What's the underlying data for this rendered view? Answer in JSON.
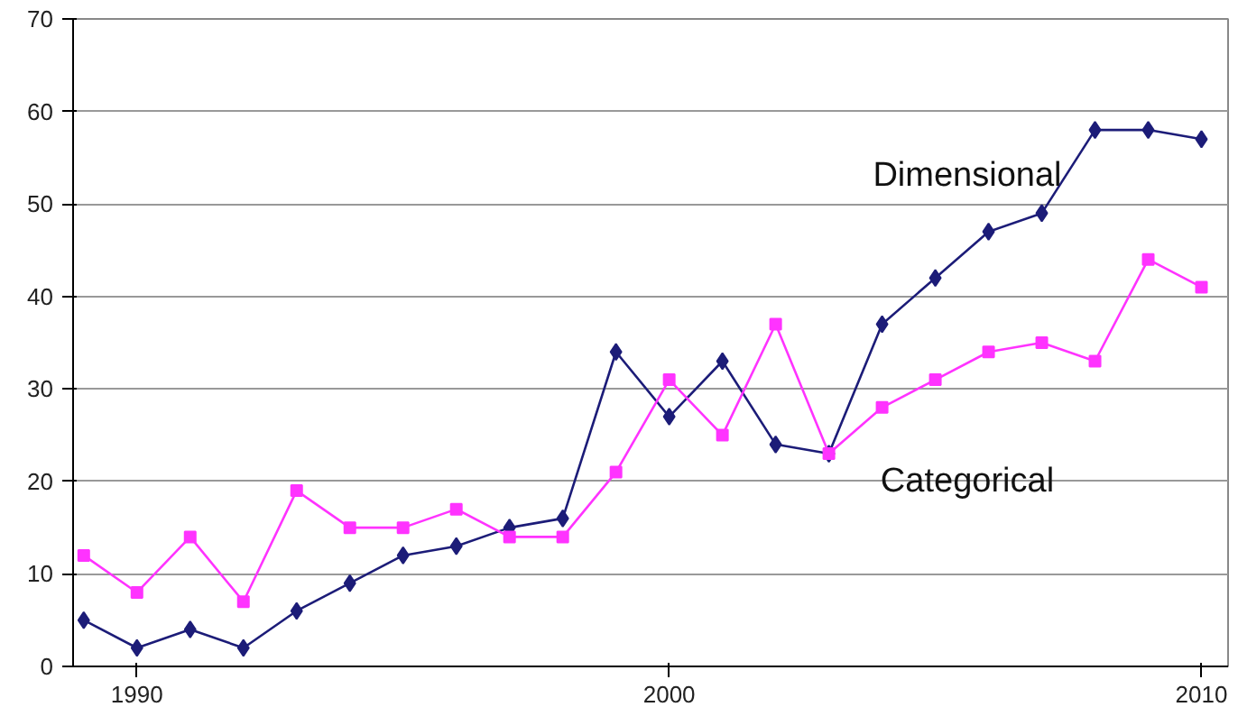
{
  "chart_data": {
    "type": "line",
    "x": [
      1989,
      1990,
      1991,
      1992,
      1993,
      1994,
      1995,
      1996,
      1997,
      1998,
      1999,
      2000,
      2001,
      2002,
      2003,
      2004,
      2005,
      2006,
      2007,
      2008,
      2009,
      2010
    ],
    "series": [
      {
        "name": "Dimensional",
        "color": "#1c1c78",
        "marker": "diamond",
        "values": [
          5,
          2,
          4,
          2,
          6,
          9,
          12,
          13,
          15,
          16,
          34,
          27,
          33,
          24,
          23,
          37,
          42,
          47,
          49,
          58,
          58,
          57
        ]
      },
      {
        "name": "Categorical",
        "color": "#ff33ff",
        "marker": "square",
        "values": [
          12,
          8,
          14,
          7,
          19,
          15,
          15,
          17,
          14,
          14,
          21,
          31,
          25,
          37,
          23,
          28,
          31,
          34,
          35,
          33,
          44,
          41
        ]
      }
    ],
    "xlim": [
      1988.8,
      2010.5
    ],
    "xticks": [
      1990,
      2000,
      2010
    ],
    "ylim": [
      0,
      70
    ],
    "yticks": [
      0,
      10,
      20,
      30,
      40,
      50,
      60,
      70
    ],
    "grid": "y",
    "line_style": "solid"
  }
}
